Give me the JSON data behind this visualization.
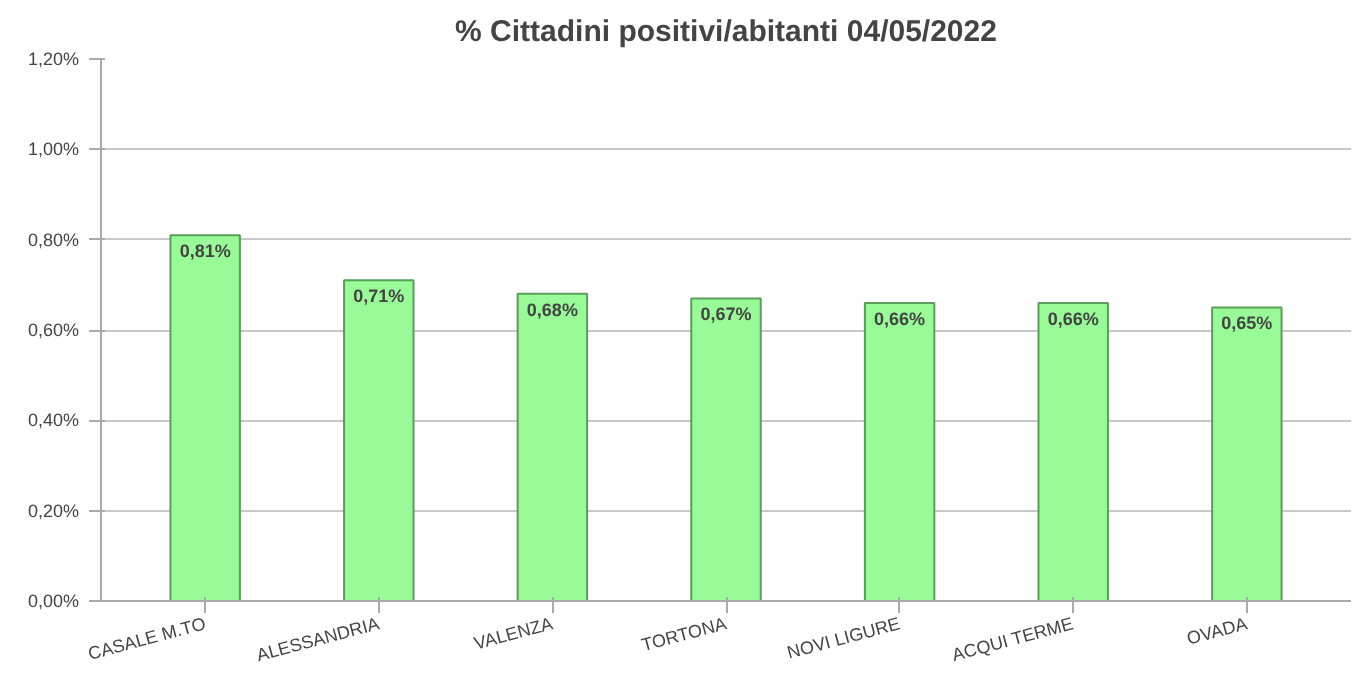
{
  "chart_data": {
    "type": "bar",
    "title": "% Cittadini positivi/abitanti 04/05/2022",
    "categories": [
      "CASALE M.TO",
      "ALESSANDRIA",
      "VALENZA",
      "TORTONA",
      "NOVI LIGURE",
      "ACQUI TERME",
      "OVADA"
    ],
    "values": [
      0.81,
      0.71,
      0.68,
      0.67,
      0.66,
      0.66,
      0.65
    ],
    "value_labels": [
      "0,81%",
      "0,71%",
      "0,68%",
      "0,67%",
      "0,66%",
      "0,66%",
      "0,65%"
    ],
    "color": "#98fb98",
    "ylim": [
      0,
      1.2
    ],
    "yticks": [
      {
        "value": 0,
        "label": "0,00%"
      },
      {
        "value": 0.2,
        "label": "0,20%"
      },
      {
        "value": 0.4,
        "label": "0,40%"
      },
      {
        "value": 0.6,
        "label": "0,60%"
      },
      {
        "value": 0.8,
        "label": "0,80%"
      },
      {
        "value": 1.0,
        "label": "1,00%"
      },
      {
        "value": 1.2,
        "label": "1,20%"
      }
    ],
    "grid": "y"
  }
}
